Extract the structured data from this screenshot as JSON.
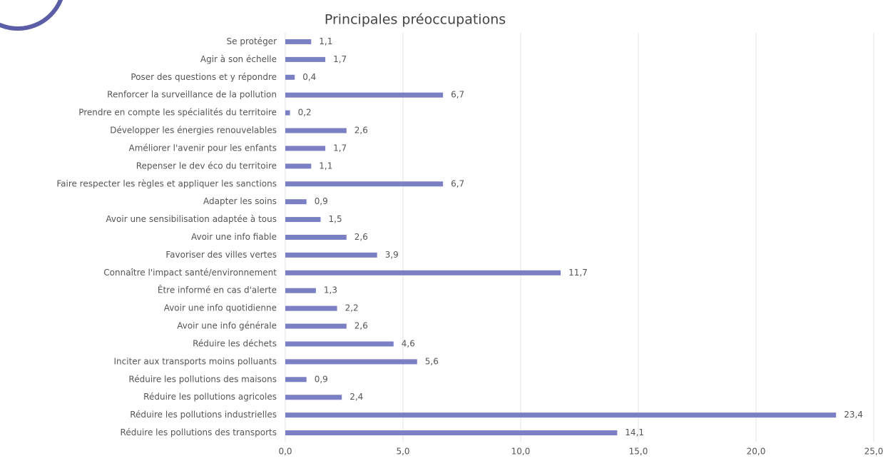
{
  "chart_data": {
    "type": "barh",
    "title": "Principales préoccupations",
    "categories": [
      "Se protéger",
      "Agir à son échelle",
      "Poser des questions et y répondre",
      "Renforcer la surveillance de la pollution",
      "Prendre en compte les spécialités du territoire",
      "Développer les énergies renouvelables",
      "Améliorer l'avenir pour les enfants",
      "Repenser le dev éco du territoire",
      "Faire respecter les règles et appliquer les sanctions",
      "Adapter les soins",
      "Avoir une sensibilisation adaptée à tous",
      "Avoir une info fiable",
      "Favoriser des villes vertes",
      "Connaître l'impact santé/environnement",
      "Être informé en cas d'alerte",
      "Avoir une info quotidienne",
      "Avoir une info générale",
      "Réduire les déchets",
      "Inciter aux transports moins polluants",
      "Réduire les pollutions des maisons",
      "Réduire les pollutions agricoles",
      "Réduire les pollutions industrielles",
      "Réduire les pollutions des transports"
    ],
    "values": [
      1.1,
      1.7,
      0.4,
      6.7,
      0.2,
      2.6,
      1.7,
      1.1,
      6.7,
      0.9,
      1.5,
      2.6,
      3.9,
      11.7,
      1.3,
      2.2,
      2.6,
      4.6,
      5.6,
      0.9,
      2.4,
      23.4,
      14.1
    ],
    "value_labels": [
      "1,1",
      "1,7",
      "0,4",
      "6,7",
      "0,2",
      "2,6",
      "1,7",
      "1,1",
      "6,7",
      "0,9",
      "1,5",
      "2,6",
      "3,9",
      "11,7",
      "1,3",
      "2,2",
      "2,6",
      "4,6",
      "5,6",
      "0,9",
      "2,4",
      "23,4",
      "14,1"
    ],
    "color": "#7b7fc4",
    "xlim": [
      0,
      25
    ],
    "xticks": [
      {
        "value": 0,
        "label": "0,0"
      },
      {
        "value": 5,
        "label": "5,0"
      },
      {
        "value": 10,
        "label": "10,0"
      },
      {
        "value": 15,
        "label": "15,0"
      },
      {
        "value": 20,
        "label": "20,0"
      },
      {
        "value": 25,
        "label": "25,0"
      }
    ],
    "grid": true
  }
}
